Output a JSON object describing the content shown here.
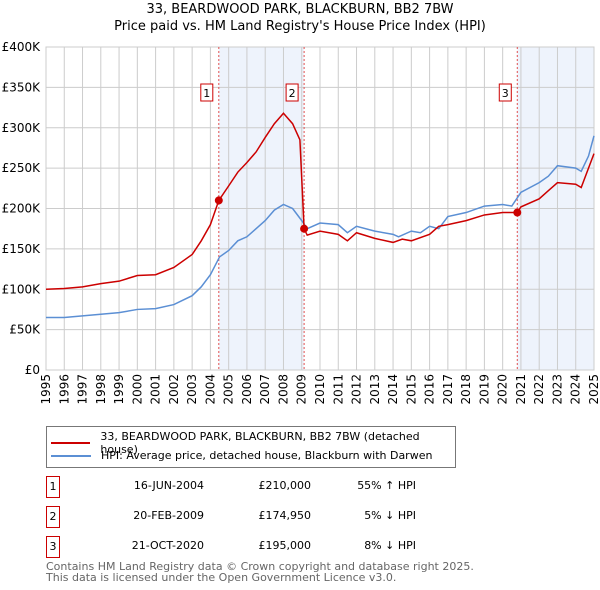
{
  "chart_data": {
    "type": "line",
    "title": "33, BEARDWOOD PARK, BLACKBURN, BB2 7BW",
    "subtitle": "Price paid vs. HM Land Registry's House Price Index (HPI)",
    "xlim": [
      1995,
      2025
    ],
    "ylim": [
      0,
      400000
    ],
    "y_ticks": [
      0,
      50000,
      100000,
      150000,
      200000,
      250000,
      300000,
      350000,
      400000
    ],
    "y_tick_labels": [
      "£0",
      "£50K",
      "£100K",
      "£150K",
      "£200K",
      "£250K",
      "£300K",
      "£350K",
      "£400K"
    ],
    "x_tick_labels": [
      "1995",
      "1996",
      "1997",
      "1998",
      "1999",
      "2000",
      "2001",
      "2002",
      "2003",
      "2004",
      "2005",
      "2006",
      "2007",
      "2008",
      "2009",
      "2010",
      "2011",
      "2012",
      "2013",
      "2014",
      "2015",
      "2016",
      "2017",
      "2018",
      "2019",
      "2020",
      "2021",
      "2022",
      "2023",
      "2024",
      "2025"
    ],
    "grid": true,
    "series": [
      {
        "name": "33, BEARDWOOD PARK, BLACKBURN, BB2 7BW (detached house)",
        "color": "#cc0000",
        "x": [
          1995,
          1996,
          1997,
          1998,
          1999,
          2000,
          2001,
          2002,
          2003,
          2003.5,
          2004,
          2004.46,
          2005,
          2005.5,
          2006,
          2006.5,
          2007,
          2007.5,
          2008,
          2008.5,
          2008.9,
          2009.13,
          2009.3,
          2010,
          2011,
          2011.5,
          2012,
          2013,
          2014,
          2014.5,
          2015,
          2016,
          2016.5,
          2017,
          2018,
          2019,
          2020,
          2020.8,
          2021,
          2022,
          2022.5,
          2023,
          2024,
          2024.3,
          2024.7,
          2025
        ],
        "y": [
          100000,
          101000,
          103000,
          107000,
          110000,
          117000,
          118000,
          127000,
          143000,
          160000,
          180000,
          210000,
          228000,
          245000,
          257000,
          270000,
          288000,
          305000,
          318000,
          305000,
          285000,
          175000,
          167000,
          172000,
          168000,
          160000,
          170000,
          163000,
          158000,
          162000,
          160000,
          168000,
          178000,
          180000,
          185000,
          192000,
          195000,
          195000,
          202000,
          212000,
          222000,
          232000,
          230000,
          226000,
          250000,
          268000
        ]
      },
      {
        "name": "HPI: Average price, detached house, Blackburn with Darwen",
        "color": "#5b8fd4",
        "x": [
          1995,
          1996,
          1997,
          1998,
          1999,
          2000,
          2001,
          2002,
          2003,
          2003.5,
          2004,
          2004.5,
          2005,
          2005.5,
          2006,
          2006.5,
          2007,
          2007.5,
          2008,
          2008.5,
          2009,
          2009.3,
          2010,
          2011,
          2011.5,
          2012,
          2013,
          2014,
          2014.3,
          2015,
          2015.5,
          2016,
          2016.5,
          2017,
          2018,
          2019,
          2020,
          2020.5,
          2021,
          2022,
          2022.5,
          2023,
          2024,
          2024.3,
          2024.7,
          2025
        ],
        "y": [
          65000,
          65000,
          67000,
          69000,
          71000,
          75000,
          76000,
          81000,
          92000,
          103000,
          118000,
          140000,
          148000,
          160000,
          165000,
          175000,
          185000,
          198000,
          205000,
          200000,
          185000,
          175000,
          182000,
          180000,
          170000,
          178000,
          172000,
          168000,
          165000,
          172000,
          170000,
          178000,
          175000,
          190000,
          195000,
          203000,
          205000,
          203000,
          220000,
          232000,
          240000,
          253000,
          250000,
          246000,
          265000,
          290000
        ]
      }
    ],
    "sales": [
      {
        "label": "1",
        "x": 2004.46,
        "price": 210000,
        "date": "16-JUN-2004",
        "price_text": "£210,000",
        "hpi_text": "55% ↑ HPI"
      },
      {
        "label": "2",
        "x": 2009.13,
        "price": 174950,
        "date": "20-FEB-2009",
        "price_text": "£174,950",
        "hpi_text": "5% ↓ HPI"
      },
      {
        "label": "3",
        "x": 2020.8,
        "price": 195000,
        "date": "21-OCT-2020",
        "price_text": "£195,000",
        "hpi_text": "8% ↓ HPI"
      }
    ],
    "shaded_ranges": [
      [
        2004.46,
        2009.13
      ],
      [
        2020.8,
        2025
      ]
    ],
    "legend_position": "below"
  },
  "footer": {
    "line1": "Contains HM Land Registry data © Crown copyright and database right 2025.",
    "line2": "This data is licensed under the Open Government Licence v3.0."
  }
}
